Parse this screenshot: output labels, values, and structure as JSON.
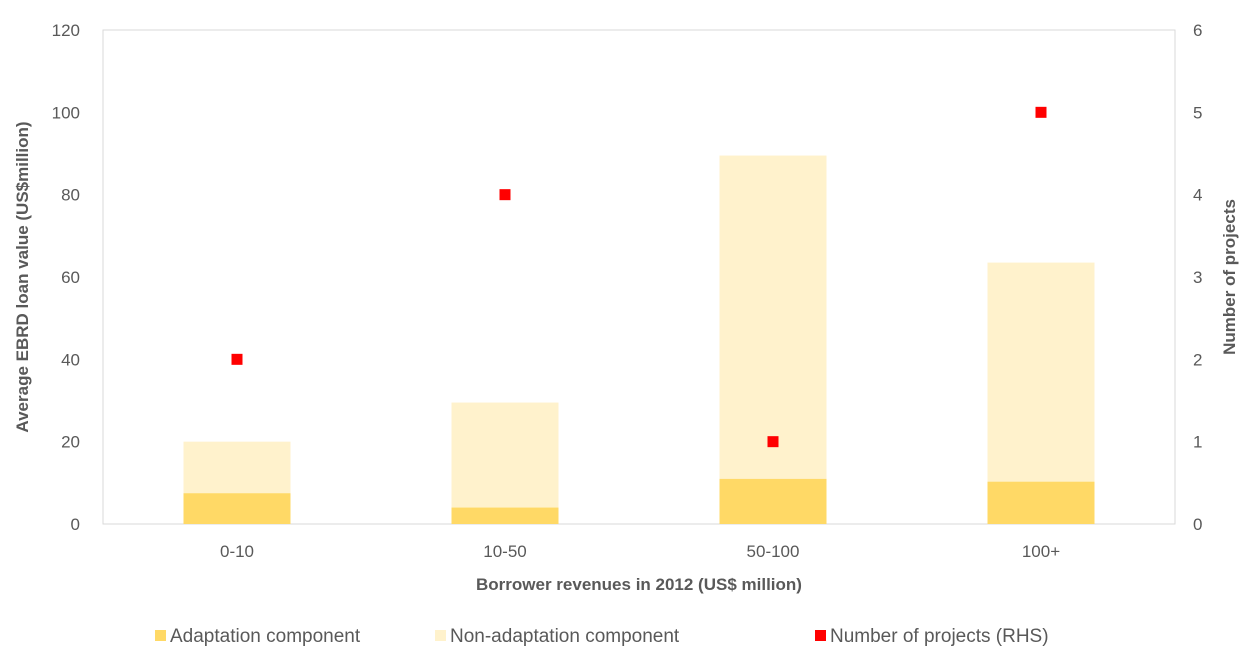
{
  "chart_data": {
    "type": "bar",
    "categories": [
      "0-10",
      "10-50",
      "50-100",
      "100+"
    ],
    "series": [
      {
        "name": "Adaptation component",
        "kind": "bar",
        "axis": "left",
        "stack": "loan",
        "color": "#FFD966",
        "values": [
          7.5,
          4,
          11,
          10.3
        ]
      },
      {
        "name": "Non-adaptation component",
        "kind": "bar",
        "axis": "left",
        "stack": "loan",
        "color": "#FFF2CC",
        "values": [
          12.5,
          25.5,
          78.5,
          53.2
        ]
      },
      {
        "name": "Number of projects (RHS)",
        "kind": "scatter",
        "axis": "right",
        "color": "#FF0000",
        "values": [
          2,
          4,
          1,
          5
        ]
      }
    ],
    "xlabel": "Borrower revenues in 2012 (US$ million)",
    "ylabel": "Average EBRD loan value (US$million)",
    "y2label": "Number of projects",
    "ylim": [
      0,
      120
    ],
    "y2lim": [
      0,
      6
    ],
    "yticks": [
      "0",
      "20",
      "40",
      "60",
      "80",
      "100",
      "120"
    ],
    "y2ticks": [
      "0",
      "1",
      "2",
      "3",
      "4",
      "5",
      "6"
    ],
    "stacked": true,
    "grid": false,
    "legend_position": "bottom"
  }
}
